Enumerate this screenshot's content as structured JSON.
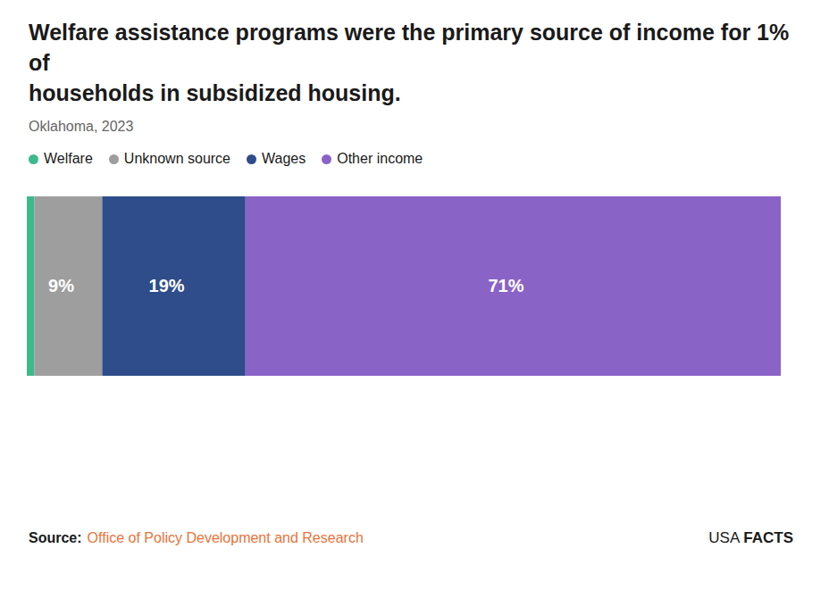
{
  "chart_data": {
    "type": "bar",
    "orientation": "horizontal",
    "stacked": true,
    "title": "Welfare assistance programs were the primary source of income for 1% of\nhouseholds in subsidized housing.",
    "subtitle": "Oklahoma, 2023",
    "categories": [
      null
    ],
    "series": [
      {
        "name": "Welfare",
        "color": "#3dba8c",
        "values": [
          1
        ]
      },
      {
        "name": "Unknown source",
        "color": "#9e9e9e",
        "values": [
          9
        ],
        "value_labels": [
          "9%"
        ]
      },
      {
        "name": "Wages",
        "color": "#2e4d8a",
        "values": [
          19
        ],
        "value_labels": [
          "19%"
        ]
      },
      {
        "name": "Other income",
        "color": "#8a63c7",
        "values": [
          71
        ],
        "value_labels": [
          "71%"
        ]
      }
    ],
    "xlim": [
      0,
      100
    ],
    "data_labels": true,
    "tick_labels": false,
    "grid": false,
    "legend": "top-left",
    "annotations": [
      "Source:",
      "Office of Policy Development and Research",
      "USA",
      "FACTS"
    ]
  }
}
